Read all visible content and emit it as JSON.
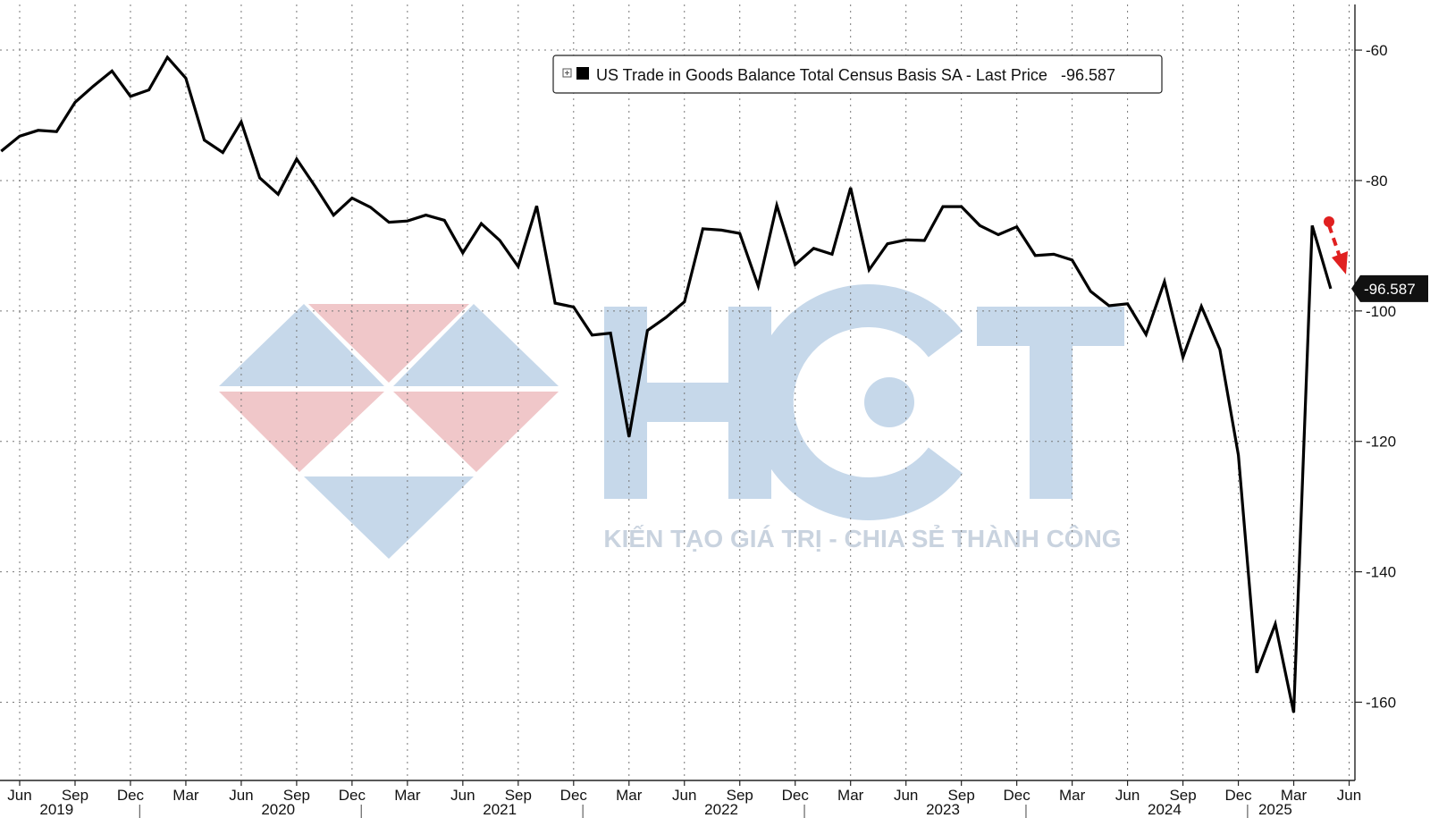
{
  "chart_data": {
    "type": "line",
    "legend": {
      "label": "US Trade in Goods Balance Total Census Basis SA - Last Price",
      "last_value_text": "-96.587",
      "placement": "top-center"
    },
    "last_price_label": "-96.587",
    "ylim": [
      -172,
      -53
    ],
    "y_ticks": [
      {
        "value": -60,
        "label": "-60"
      },
      {
        "value": -80,
        "label": "-80"
      },
      {
        "value": -100,
        "label": "-100"
      },
      {
        "value": -120,
        "label": "-120"
      },
      {
        "value": -140,
        "label": "-140"
      },
      {
        "value": -160,
        "label": "-160"
      }
    ],
    "x_ticks": [
      {
        "date": "2019-06",
        "label": "Jun"
      },
      {
        "date": "2019-09",
        "label": "Sep"
      },
      {
        "date": "2019-12",
        "label": "Dec"
      },
      {
        "date": "2020-03",
        "label": "Mar"
      },
      {
        "date": "2020-06",
        "label": "Jun"
      },
      {
        "date": "2020-09",
        "label": "Sep"
      },
      {
        "date": "2020-12",
        "label": "Dec"
      },
      {
        "date": "2021-03",
        "label": "Mar"
      },
      {
        "date": "2021-06",
        "label": "Jun"
      },
      {
        "date": "2021-09",
        "label": "Sep"
      },
      {
        "date": "2021-12",
        "label": "Dec"
      },
      {
        "date": "2022-03",
        "label": "Mar"
      },
      {
        "date": "2022-06",
        "label": "Jun"
      },
      {
        "date": "2022-09",
        "label": "Sep"
      },
      {
        "date": "2022-12",
        "label": "Dec"
      },
      {
        "date": "2023-03",
        "label": "Mar"
      },
      {
        "date": "2023-06",
        "label": "Jun"
      },
      {
        "date": "2023-09",
        "label": "Sep"
      },
      {
        "date": "2023-12",
        "label": "Dec"
      },
      {
        "date": "2024-03",
        "label": "Mar"
      },
      {
        "date": "2024-06",
        "label": "Jun"
      },
      {
        "date": "2024-09",
        "label": "Sep"
      },
      {
        "date": "2024-12",
        "label": "Dec"
      },
      {
        "date": "2025-03",
        "label": "Mar"
      },
      {
        "date": "2025-06",
        "label": "Jun"
      }
    ],
    "x_years": [
      {
        "date": "2019-08",
        "label": "2019"
      },
      {
        "date": "2020-08",
        "label": "2020"
      },
      {
        "date": "2021-08",
        "label": "2021"
      },
      {
        "date": "2022-08",
        "label": "2022"
      },
      {
        "date": "2023-08",
        "label": "2023"
      },
      {
        "date": "2024-08",
        "label": "2024"
      },
      {
        "date": "2025-02",
        "label": "2025"
      }
    ],
    "year_dividers": [
      "2020-01",
      "2021-01",
      "2022-01",
      "2023-01",
      "2024-01",
      "2025-01"
    ],
    "series": [
      {
        "color": "#000000",
        "x": [
          "2019-05",
          "2019-06",
          "2019-07",
          "2019-08",
          "2019-09",
          "2019-10",
          "2019-11",
          "2019-12",
          "2020-01",
          "2020-02",
          "2020-03",
          "2020-04",
          "2020-05",
          "2020-06",
          "2020-07",
          "2020-08",
          "2020-09",
          "2020-10",
          "2020-11",
          "2020-12",
          "2021-01",
          "2021-02",
          "2021-03",
          "2021-04",
          "2021-05",
          "2021-06",
          "2021-07",
          "2021-08",
          "2021-09",
          "2021-10",
          "2021-11",
          "2021-12",
          "2022-01",
          "2022-02",
          "2022-03",
          "2022-04",
          "2022-05",
          "2022-06",
          "2022-07",
          "2022-08",
          "2022-09",
          "2022-10",
          "2022-11",
          "2022-12",
          "2023-01",
          "2023-02",
          "2023-03",
          "2023-04",
          "2023-05",
          "2023-06",
          "2023-07",
          "2023-08",
          "2023-09",
          "2023-10",
          "2023-11",
          "2023-12",
          "2024-01",
          "2024-02",
          "2024-03",
          "2024-04",
          "2024-05",
          "2024-06",
          "2024-07",
          "2024-08",
          "2024-09",
          "2024-10",
          "2024-11",
          "2024-12",
          "2025-01",
          "2025-02",
          "2025-03",
          "2025-04",
          "2025-05"
        ],
        "y": [
          -75.5,
          -73.2,
          -72.3,
          -72.5,
          -68,
          -65.5,
          -63.2,
          -67.1,
          -66.1,
          -61.1,
          -64.3,
          -73.8,
          -75.7,
          -71,
          -79.6,
          -82.1,
          -76.7,
          -80.9,
          -85.3,
          -82.7,
          -84.1,
          -86.4,
          -86.2,
          -85.3,
          -86.1,
          -91.1,
          -86.6,
          -89.2,
          -93.2,
          -83.9,
          -98.8,
          -99.4,
          -103.7,
          -103.4,
          -119.3,
          -103,
          -101,
          -98.6,
          -87.4,
          -87.6,
          -88.1,
          -96.2,
          -83.8,
          -92.9,
          -90.4,
          -91.3,
          -81.1,
          -93.7,
          -89.7,
          -89.1,
          -89.2,
          -84,
          -84,
          -86.9,
          -88.3,
          -87.1,
          -91.5,
          -91.3,
          -92.2,
          -97,
          -99.2,
          -98.9,
          -103.6,
          -95.5,
          -107.1,
          -99.3,
          -105.9,
          -122.1,
          -155.5,
          -148,
          -161.6,
          -86.9,
          -96.587
        ]
      }
    ],
    "annotation": {
      "type": "red-dashed-down-arrow",
      "color": "#e02020"
    },
    "watermark": {
      "brand_letters": [
        "H",
        "C",
        "T"
      ],
      "tagline": "KIẾN TẠO GIÁ TRỊ - CHIA SẺ THÀNH CÔNG",
      "colors": {
        "blue": "#c6d8ea",
        "red": "#f0c7c9",
        "text": "#c9d3df"
      }
    },
    "grid": true
  }
}
